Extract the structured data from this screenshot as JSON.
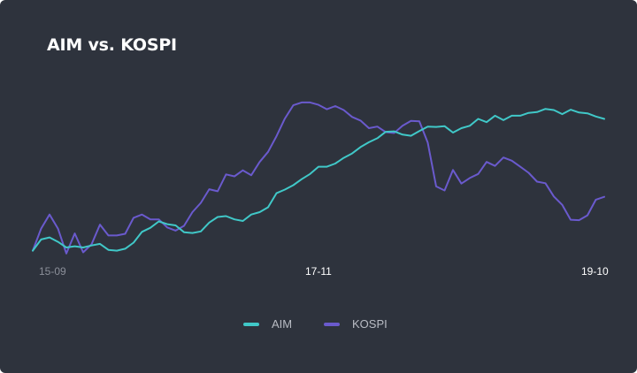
{
  "chart_data": {
    "type": "line",
    "title": "AIM vs. KOSPI",
    "x_ticks": [
      "15-09",
      "17-11",
      "19-10"
    ],
    "x_tick_colors": [
      "#8b8f99",
      "#ffffff",
      "#ffffff"
    ],
    "series": [
      {
        "name": "AIM",
        "color": "#40c8c8",
        "values": [
          95.6,
          98.4,
          98.9,
          97.8,
          96.4,
          96.7,
          96.4,
          96.9,
          97.3,
          95.8,
          95.6,
          96.1,
          97.6,
          100.3,
          101.3,
          102.9,
          102.2,
          101.9,
          100.2,
          100.0,
          100.4,
          102.6,
          104.0,
          104.2,
          103.4,
          103.0,
          104.6,
          105.2,
          106.4,
          109.9,
          110.8,
          111.9,
          113.4,
          114.7,
          116.5,
          116.5,
          117.3,
          118.7,
          119.8,
          121.4,
          122.6,
          123.6,
          125.2,
          125.3,
          124.5,
          124.2,
          125.4,
          126.5,
          126.4,
          126.6,
          125.0,
          126.1,
          126.7,
          128.4,
          127.6,
          129.2,
          128.1,
          129.2,
          129.2,
          129.9,
          130.1,
          130.9,
          130.6,
          129.6,
          130.7,
          130.0,
          129.8,
          129.0,
          128.4
        ]
      },
      {
        "name": "KOSPI",
        "color": "#6a5acd",
        "values": [
          95.6,
          101.1,
          104.6,
          101.1,
          94.9,
          99.9,
          95.2,
          97.2,
          102.1,
          99.4,
          99.4,
          99.8,
          103.8,
          104.6,
          103.4,
          103.4,
          101.4,
          100.6,
          101.8,
          105.2,
          107.5,
          110.9,
          110.4,
          114.6,
          114.1,
          115.6,
          114.4,
          117.7,
          120.2,
          124.1,
          128.5,
          131.8,
          132.5,
          132.5,
          131.9,
          130.8,
          131.6,
          130.6,
          128.9,
          128.0,
          126.1,
          126.5,
          125.1,
          124.9,
          126.7,
          127.9,
          127.8,
          122.5,
          111.6,
          110.6,
          115.7,
          112.3,
          113.7,
          114.7,
          117.7,
          116.7,
          118.8,
          118.0,
          116.5,
          115.0,
          112.8,
          112.4,
          109.1,
          107.0,
          103.3,
          103.2,
          104.4,
          108.3,
          109.0
        ]
      }
    ],
    "ylim": [
      92,
      136
    ],
    "grid": false,
    "legend_position": "bottom-center"
  }
}
